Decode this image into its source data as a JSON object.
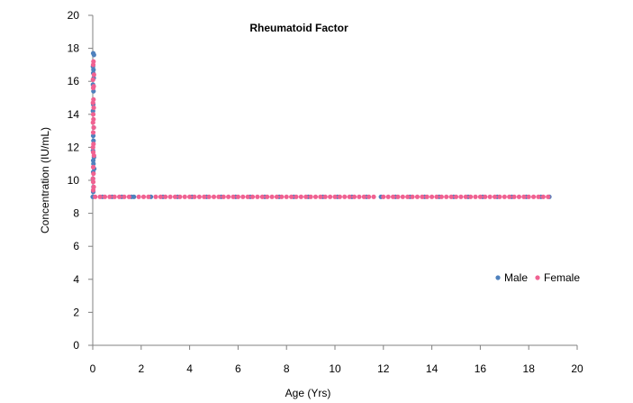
{
  "chart_data": {
    "type": "scatter",
    "title": "Rheumatoid Factor",
    "xlabel": "Age (Yrs)",
    "ylabel": "Concentration (IU/mL)",
    "xlim": [
      0,
      20
    ],
    "ylim": [
      0,
      20
    ],
    "xticks": [
      0,
      2,
      4,
      6,
      8,
      10,
      12,
      14,
      16,
      18,
      20
    ],
    "yticks": [
      0,
      2,
      4,
      6,
      8,
      10,
      12,
      14,
      16,
      18,
      20
    ],
    "grid": false,
    "legend_position": "right",
    "series": [
      {
        "name": "Male",
        "color": "#4f81bd",
        "points": [
          [
            0.02,
            17.7
          ],
          [
            0.05,
            17.6
          ],
          [
            0.01,
            16.9
          ],
          [
            0.03,
            16.7
          ],
          [
            0.02,
            16.5
          ],
          [
            0.04,
            16.2
          ],
          [
            0.01,
            15.8
          ],
          [
            0.03,
            15.4
          ],
          [
            0.02,
            14.6
          ],
          [
            0.01,
            14.2
          ],
          [
            0.04,
            13.2
          ],
          [
            0.02,
            12.7
          ],
          [
            0.03,
            12.4
          ],
          [
            0.01,
            11.8
          ],
          [
            0.05,
            11.4
          ],
          [
            0.02,
            11.2
          ],
          [
            0.03,
            11.0
          ],
          [
            0.06,
            10.7
          ],
          [
            0.02,
            10.5
          ],
          [
            0.01,
            10.1
          ],
          [
            0.03,
            9.6
          ],
          [
            0.02,
            9.3
          ],
          [
            0.0,
            9
          ],
          [
            0.4,
            9
          ],
          [
            0.8,
            9
          ],
          [
            1.2,
            9
          ],
          [
            1.6,
            9
          ],
          [
            1.7,
            9
          ],
          [
            2.4,
            9
          ],
          [
            2.9,
            9
          ],
          [
            3.5,
            9
          ],
          [
            4.1,
            9
          ],
          [
            4.7,
            9
          ],
          [
            5.3,
            9
          ],
          [
            5.9,
            9
          ],
          [
            6.5,
            9
          ],
          [
            7.1,
            9
          ],
          [
            7.7,
            9
          ],
          [
            8.3,
            9
          ],
          [
            8.9,
            9
          ],
          [
            9.5,
            9
          ],
          [
            10.1,
            9
          ],
          [
            10.7,
            9
          ],
          [
            11.3,
            9
          ],
          [
            11.9,
            9
          ],
          [
            12.5,
            9
          ],
          [
            13.1,
            9
          ],
          [
            13.7,
            9
          ],
          [
            14.3,
            9
          ],
          [
            14.9,
            9
          ],
          [
            15.5,
            9
          ],
          [
            16.1,
            9
          ],
          [
            16.7,
            9
          ],
          [
            17.3,
            9
          ],
          [
            17.9,
            9
          ],
          [
            18.5,
            9
          ],
          [
            18.85,
            9
          ]
        ]
      },
      {
        "name": "Female",
        "color": "#f06292",
        "points": [
          [
            0.03,
            17.2
          ],
          [
            0.02,
            17.0
          ],
          [
            0.05,
            16.4
          ],
          [
            0.01,
            16.1
          ],
          [
            0.04,
            15.7
          ],
          [
            0.02,
            15.6
          ],
          [
            0.03,
            14.9
          ],
          [
            0.01,
            14.7
          ],
          [
            0.04,
            14.4
          ],
          [
            0.02,
            14.0
          ],
          [
            0.03,
            13.7
          ],
          [
            0.01,
            13.5
          ],
          [
            0.04,
            13.2
          ],
          [
            0.02,
            12.9
          ],
          [
            0.03,
            12.2
          ],
          [
            0.01,
            12.0
          ],
          [
            0.02,
            11.7
          ],
          [
            0.05,
            11.5
          ],
          [
            0.02,
            10.8
          ],
          [
            0.03,
            10.4
          ],
          [
            0.01,
            10.1
          ],
          [
            0.02,
            9.9
          ],
          [
            0.04,
            9.6
          ],
          [
            0.02,
            9.4
          ],
          [
            0.1,
            9
          ],
          [
            0.3,
            9
          ],
          [
            0.5,
            9
          ],
          [
            0.7,
            9
          ],
          [
            0.9,
            9
          ],
          [
            1.1,
            9
          ],
          [
            1.3,
            9
          ],
          [
            1.5,
            9
          ],
          [
            1.9,
            9
          ],
          [
            2.1,
            9
          ],
          [
            2.3,
            9
          ],
          [
            2.6,
            9
          ],
          [
            2.8,
            9
          ],
          [
            3.0,
            9
          ],
          [
            3.2,
            9
          ],
          [
            3.4,
            9
          ],
          [
            3.6,
            9
          ],
          [
            3.8,
            9
          ],
          [
            4.0,
            9
          ],
          [
            4.2,
            9
          ],
          [
            4.4,
            9
          ],
          [
            4.6,
            9
          ],
          [
            4.8,
            9
          ],
          [
            5.0,
            9
          ],
          [
            5.2,
            9
          ],
          [
            5.4,
            9
          ],
          [
            5.6,
            9
          ],
          [
            5.8,
            9
          ],
          [
            6.0,
            9
          ],
          [
            6.2,
            9
          ],
          [
            6.4,
            9
          ],
          [
            6.6,
            9
          ],
          [
            6.8,
            9
          ],
          [
            7.0,
            9
          ],
          [
            7.2,
            9
          ],
          [
            7.4,
            9
          ],
          [
            7.6,
            9
          ],
          [
            7.8,
            9
          ],
          [
            8.0,
            9
          ],
          [
            8.2,
            9
          ],
          [
            8.4,
            9
          ],
          [
            8.6,
            9
          ],
          [
            8.8,
            9
          ],
          [
            9.0,
            9
          ],
          [
            9.2,
            9
          ],
          [
            9.4,
            9
          ],
          [
            9.6,
            9
          ],
          [
            9.8,
            9
          ],
          [
            10.0,
            9
          ],
          [
            10.2,
            9
          ],
          [
            10.4,
            9
          ],
          [
            10.6,
            9
          ],
          [
            10.8,
            9
          ],
          [
            11.0,
            9
          ],
          [
            11.2,
            9
          ],
          [
            11.4,
            9
          ],
          [
            11.6,
            9
          ],
          [
            12.0,
            9
          ],
          [
            12.2,
            9
          ],
          [
            12.4,
            9
          ],
          [
            12.6,
            9
          ],
          [
            12.8,
            9
          ],
          [
            13.0,
            9
          ],
          [
            13.2,
            9
          ],
          [
            13.4,
            9
          ],
          [
            13.6,
            9
          ],
          [
            13.8,
            9
          ],
          [
            14.0,
            9
          ],
          [
            14.2,
            9
          ],
          [
            14.4,
            9
          ],
          [
            14.6,
            9
          ],
          [
            14.8,
            9
          ],
          [
            15.0,
            9
          ],
          [
            15.2,
            9
          ],
          [
            15.4,
            9
          ],
          [
            15.6,
            9
          ],
          [
            15.8,
            9
          ],
          [
            16.0,
            9
          ],
          [
            16.2,
            9
          ],
          [
            16.4,
            9
          ],
          [
            16.6,
            9
          ],
          [
            16.8,
            9
          ],
          [
            17.0,
            9
          ],
          [
            17.2,
            9
          ],
          [
            17.4,
            9
          ],
          [
            17.6,
            9
          ],
          [
            17.8,
            9
          ],
          [
            18.0,
            9
          ],
          [
            18.2,
            9
          ],
          [
            18.4,
            9
          ],
          [
            18.6,
            9
          ],
          [
            18.8,
            9
          ]
        ]
      }
    ]
  }
}
